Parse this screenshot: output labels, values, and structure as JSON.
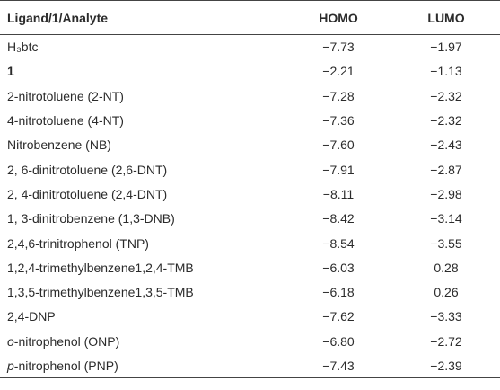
{
  "table": {
    "header": [
      "Ligand/1/Analyte",
      "HOMO",
      "LUMO"
    ],
    "rows": [
      {
        "label": "H₃btc",
        "homo": "−7.73",
        "lumo": "−1.97"
      },
      {
        "label": "1",
        "bold": true,
        "homo": "−2.21",
        "lumo": "−1.13"
      },
      {
        "label": "2-nitrotoluene (2-NT)",
        "homo": "−7.28",
        "lumo": "−2.32"
      },
      {
        "label": "4-nitrotoluene (4-NT)",
        "homo": "−7.36",
        "lumo": "−2.32"
      },
      {
        "label": "Nitrobenzene (NB)",
        "homo": "−7.60",
        "lumo": "−2.43"
      },
      {
        "label": "2, 6-dinitrotoluene (2,6-DNT)",
        "homo": "−7.91",
        "lumo": "−2.87"
      },
      {
        "label": "2, 4-dinitrotoluene (2,4-DNT)",
        "homo": "−8.11",
        "lumo": "−2.98"
      },
      {
        "label": "1, 3-dinitrobenzene (1,3-DNB)",
        "homo": "−8.42",
        "lumo": "−3.14"
      },
      {
        "label": "2,4,6-trinitrophenol (TNP)",
        "homo": "−8.54",
        "lumo": "−3.55"
      },
      {
        "label": "1,2,4-trimethylbenzene1,2,4-TMB",
        "homo": "−6.03",
        "lumo": "0.28"
      },
      {
        "label": "1,3,5-trimethylbenzene1,3,5-TMB",
        "homo": "−6.18",
        "lumo": "0.26"
      },
      {
        "label": "2,4-DNP",
        "homo": "−7.62",
        "lumo": "−3.33"
      },
      {
        "label_italic": "o",
        "label": "-nitrophenol (ONP)",
        "homo": "−6.80",
        "lumo": "−2.72"
      },
      {
        "label_italic": "p",
        "label": "-nitrophenol (PNP)",
        "homo": "−7.43",
        "lumo": "−2.39"
      }
    ]
  }
}
